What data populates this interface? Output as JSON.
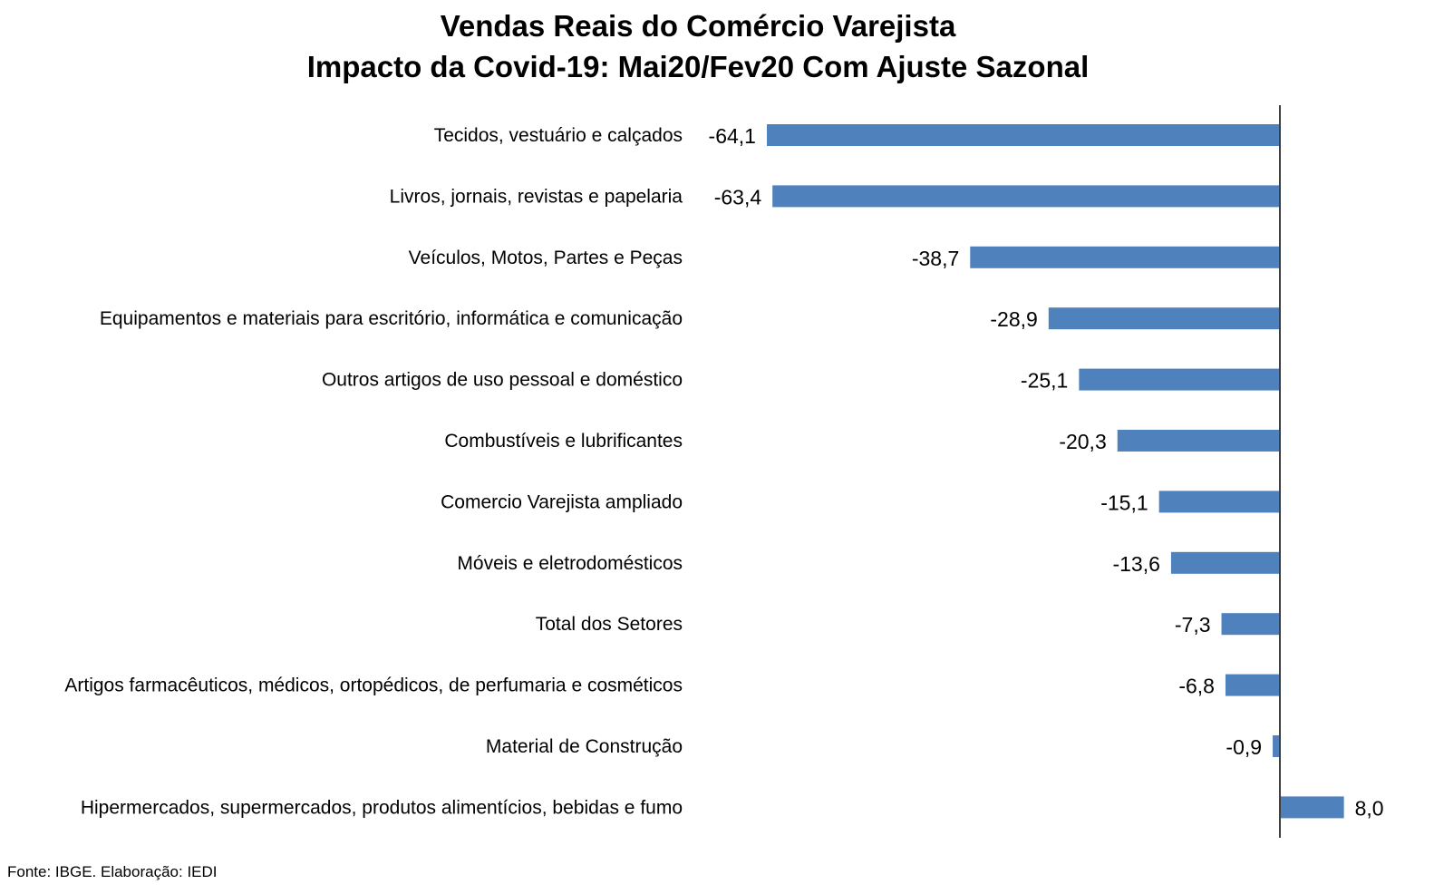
{
  "chart_data": {
    "type": "bar",
    "orientation": "horizontal",
    "title": "Vendas Reais do Comércio Varejista",
    "subtitle": "Impacto da Covid-19: Mai20/Fev20 Com Ajuste Sazonal",
    "categories": [
      "Tecidos, vestuário e calçados",
      "Livros, jornais, revistas e papelaria",
      "Veículos, Motos, Partes e Peças",
      "Equipamentos e materiais para escritório, informática e comunicação",
      "Outros artigos de uso pessoal e doméstico",
      "Combustíveis e lubrificantes",
      "Comercio Varejista ampliado",
      "Móveis e eletrodomésticos",
      "Total dos Setores",
      "Artigos farmacêuticos, médicos, ortopédicos, de perfumaria e cosméticos",
      "Material de Construção",
      "Hipermercados, supermercados, produtos alimentícios, bebidas e fumo"
    ],
    "values": [
      -64.1,
      -63.4,
      -38.7,
      -28.9,
      -25.1,
      -20.3,
      -15.1,
      -13.6,
      -7.3,
      -6.8,
      -0.9,
      8.0
    ],
    "data_labels": [
      "-64,1",
      "-63,4",
      "-38,7",
      "-28,9",
      "-25,1",
      "-20,3",
      "-15,1",
      "-13,6",
      "-7,3",
      "-6,8",
      "-0,9",
      "8,0"
    ],
    "bar_color": "#4f81bd",
    "axis_color": "#404040",
    "xlabel": "",
    "ylabel": "",
    "grid": false,
    "legend": "none"
  },
  "source": "Fonte: IBGE. Elaboração: IEDI"
}
